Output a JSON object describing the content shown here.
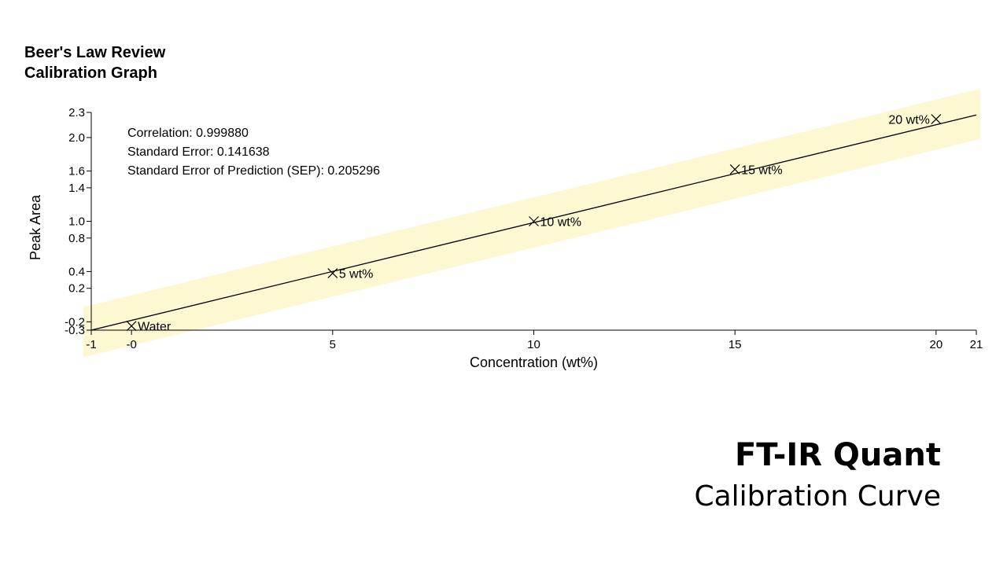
{
  "chart_data": {
    "type": "scatter",
    "title_lines": [
      "Beer's Law Review",
      "Calibration Graph"
    ],
    "xlabel": "Concentration (wt%)",
    "ylabel": "Peak Area",
    "xlim": [
      -1,
      21
    ],
    "ylim": [
      -0.3,
      2.3
    ],
    "x_ticks": [
      -1,
      0,
      5,
      10,
      15,
      20,
      21
    ],
    "x_tick_labels": [
      "-1",
      "-0",
      "5",
      "10",
      "15",
      "20",
      "21"
    ],
    "y_ticks": [
      -0.3,
      -0.2,
      0.2,
      0.4,
      0.8,
      1.0,
      1.4,
      1.6,
      2.0,
      2.3
    ],
    "y_tick_labels": [
      "-0.3",
      "-0.2",
      "0.2",
      "0.4",
      "0.8",
      "1.0",
      "1.4",
      "1.6",
      "2.0",
      "2.3"
    ],
    "grid": false,
    "legend": "none",
    "stats": [
      "Correlation: 0.999880",
      "Standard Error: 0.141638",
      "Standard Error of Prediction (SEP): 0.205296"
    ],
    "points": [
      {
        "x": 0,
        "y": -0.25,
        "label": "Water"
      },
      {
        "x": 5,
        "y": 0.38,
        "label": "5 wt%"
      },
      {
        "x": 10,
        "y": 1.0,
        "label": "10 wt%"
      },
      {
        "x": 15,
        "y": 1.62,
        "label": "15 wt%"
      },
      {
        "x": 20,
        "y": 2.22,
        "label": "20 wt%"
      }
    ],
    "fit_line": {
      "x": [
        -1,
        21
      ],
      "y": [
        -0.3,
        2.27
      ]
    },
    "confidence_band": {
      "half_width_y": 0.3,
      "color": "#fbf8d2"
    },
    "line_color": "#000000"
  },
  "caption": {
    "title": "FT-IR Quant",
    "subtitle": "Calibration Curve"
  }
}
